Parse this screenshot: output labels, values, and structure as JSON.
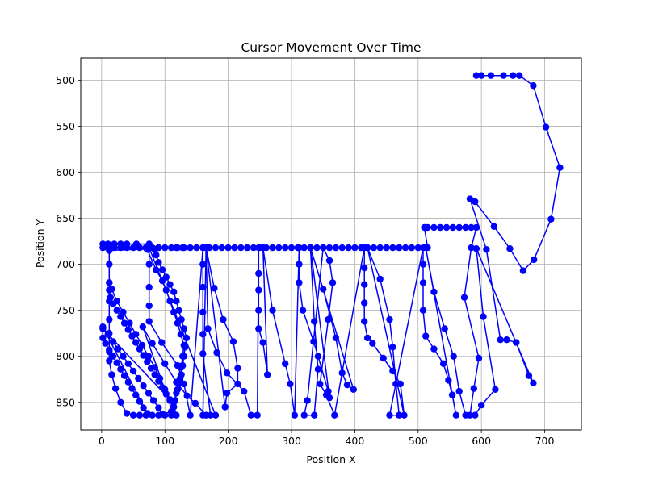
{
  "chart_data": {
    "type": "line",
    "title": "Cursor Movement Over Time",
    "xlabel": "Position X",
    "ylabel": "Position Y",
    "xlim": [
      -33,
      758
    ],
    "ylim": [
      880,
      476
    ],
    "y_inverted": true,
    "x_ticks": [
      0,
      100,
      200,
      300,
      400,
      500,
      600,
      700
    ],
    "y_ticks": [
      500,
      550,
      600,
      650,
      700,
      750,
      800,
      850
    ],
    "grid": true,
    "legend": "none",
    "series": [
      {
        "color": "#0000ff",
        "marker": "circle",
        "points": [
          [
            592,
            495
          ],
          [
            600,
            495
          ],
          [
            615,
            495
          ],
          [
            635,
            495
          ],
          [
            650,
            495
          ],
          [
            660,
            495
          ],
          [
            682,
            506
          ],
          [
            702,
            551
          ],
          [
            724,
            595
          ],
          [
            710,
            651
          ],
          [
            683,
            695
          ],
          [
            666,
            707
          ],
          [
            645,
            683
          ],
          [
            620,
            659
          ],
          [
            590,
            632
          ],
          [
            582,
            629
          ],
          [
            608,
            684
          ],
          [
            630,
            782
          ],
          [
            640,
            782
          ],
          [
            655,
            785
          ],
          [
            675,
            821
          ],
          [
            682,
            829
          ],
          [
            592,
            683
          ],
          [
            603,
            757
          ],
          [
            622,
            836
          ],
          [
            600,
            853
          ],
          [
            590,
            864
          ],
          [
            582,
            864
          ],
          [
            588,
            835
          ],
          [
            596,
            802
          ],
          [
            573,
            736
          ],
          [
            584,
            682
          ],
          [
            592,
            660
          ],
          [
            584,
            660
          ],
          [
            575,
            660
          ],
          [
            565,
            660
          ],
          [
            555,
            660
          ],
          [
            545,
            660
          ],
          [
            535,
            660
          ],
          [
            525,
            660
          ],
          [
            515,
            660
          ],
          [
            510,
            660
          ],
          [
            515,
            682
          ],
          [
            500,
            682
          ],
          [
            490,
            682
          ],
          [
            480,
            682
          ],
          [
            470,
            682
          ],
          [
            460,
            682
          ],
          [
            450,
            682
          ],
          [
            440,
            682
          ],
          [
            430,
            682
          ],
          [
            420,
            682
          ],
          [
            410,
            682
          ],
          [
            400,
            682
          ],
          [
            390,
            682
          ],
          [
            380,
            682
          ],
          [
            370,
            682
          ],
          [
            360,
            682
          ],
          [
            350,
            682
          ],
          [
            340,
            682
          ],
          [
            330,
            682
          ],
          [
            320,
            682
          ],
          [
            310,
            682
          ],
          [
            300,
            682
          ],
          [
            290,
            682
          ],
          [
            280,
            682
          ],
          [
            270,
            682
          ],
          [
            260,
            682
          ],
          [
            250,
            682
          ],
          [
            240,
            682
          ],
          [
            230,
            682
          ],
          [
            220,
            682
          ],
          [
            210,
            682
          ],
          [
            200,
            682
          ],
          [
            190,
            682
          ],
          [
            180,
            682
          ],
          [
            170,
            682
          ],
          [
            160,
            682
          ],
          [
            150,
            682
          ],
          [
            140,
            682
          ],
          [
            130,
            682
          ],
          [
            120,
            682
          ],
          [
            110,
            682
          ],
          [
            100,
            682
          ],
          [
            90,
            682
          ],
          [
            80,
            682
          ],
          [
            70,
            682
          ],
          [
            60,
            682
          ],
          [
            50,
            682
          ],
          [
            40,
            682
          ],
          [
            30,
            682
          ],
          [
            20,
            682
          ],
          [
            10,
            682
          ],
          [
            2,
            682
          ],
          [
            2,
            678
          ],
          [
            10,
            678
          ],
          [
            20,
            678
          ],
          [
            30,
            678
          ],
          [
            40,
            678
          ],
          [
            55,
            678
          ],
          [
            75,
            678
          ],
          [
            90,
            682
          ],
          [
            118,
            682
          ],
          [
            128,
            682
          ],
          [
            12,
            685
          ],
          [
            12,
            700
          ],
          [
            12,
            720
          ],
          [
            12,
            740
          ],
          [
            12,
            760
          ],
          [
            12,
            775
          ],
          [
            12,
            795
          ],
          [
            12,
            805
          ],
          [
            16,
            820
          ],
          [
            22,
            835
          ],
          [
            30,
            850
          ],
          [
            40,
            862
          ],
          [
            50,
            864
          ],
          [
            60,
            864
          ],
          [
            70,
            864
          ],
          [
            80,
            864
          ],
          [
            90,
            864
          ],
          [
            100,
            864
          ],
          [
            110,
            864
          ],
          [
            118,
            864
          ],
          [
            114,
            855
          ],
          [
            108,
            848
          ],
          [
            102,
            841
          ],
          [
            96,
            834
          ],
          [
            90,
            827
          ],
          [
            84,
            820
          ],
          [
            78,
            813
          ],
          [
            72,
            806
          ],
          [
            66,
            799
          ],
          [
            60,
            792
          ],
          [
            54,
            785
          ],
          [
            48,
            778
          ],
          [
            42,
            771
          ],
          [
            36,
            764
          ],
          [
            30,
            757
          ],
          [
            24,
            750
          ],
          [
            18,
            743
          ],
          [
            14,
            736
          ],
          [
            12,
            728
          ],
          [
            12,
            720
          ],
          [
            16,
            727
          ],
          [
            24,
            740
          ],
          [
            34,
            752
          ],
          [
            44,
            764
          ],
          [
            54,
            776
          ],
          [
            64,
            788
          ],
          [
            74,
            800
          ],
          [
            84,
            812
          ],
          [
            92,
            824
          ],
          [
            100,
            836
          ],
          [
            108,
            847
          ],
          [
            2,
            770
          ],
          [
            2,
            780
          ],
          [
            6,
            786
          ],
          [
            12,
            793
          ],
          [
            18,
            800
          ],
          [
            24,
            807
          ],
          [
            30,
            814
          ],
          [
            36,
            821
          ],
          [
            42,
            828
          ],
          [
            48,
            835
          ],
          [
            54,
            842
          ],
          [
            60,
            849
          ],
          [
            66,
            856
          ],
          [
            72,
            862
          ],
          [
            2,
            768
          ],
          [
            10,
            776
          ],
          [
            18,
            784
          ],
          [
            26,
            792
          ],
          [
            34,
            800
          ],
          [
            42,
            808
          ],
          [
            50,
            816
          ],
          [
            58,
            824
          ],
          [
            66,
            832
          ],
          [
            74,
            840
          ],
          [
            82,
            848
          ],
          [
            90,
            856
          ],
          [
            96,
            863
          ],
          [
            110,
            860
          ],
          [
            114,
            850
          ],
          [
            118,
            840
          ],
          [
            122,
            830
          ],
          [
            126,
            820
          ],
          [
            128,
            810
          ],
          [
            130,
            800
          ],
          [
            132,
            790
          ],
          [
            134,
            780
          ],
          [
            130,
            770
          ],
          [
            126,
            760
          ],
          [
            122,
            750
          ],
          [
            118,
            740
          ],
          [
            114,
            730
          ],
          [
            108,
            722
          ],
          [
            102,
            714
          ],
          [
            96,
            706
          ],
          [
            90,
            698
          ],
          [
            86,
            690
          ],
          [
            84,
            684
          ],
          [
            72,
            684
          ],
          [
            86,
            706
          ],
          [
            96,
            718
          ],
          [
            102,
            728
          ],
          [
            108,
            740
          ],
          [
            114,
            752
          ],
          [
            120,
            764
          ],
          [
            125,
            776
          ],
          [
            130,
            788
          ],
          [
            128,
            800
          ],
          [
            126,
            812
          ],
          [
            124,
            824
          ],
          [
            120,
            836
          ],
          [
            116,
            848
          ],
          [
            112,
            860
          ],
          [
            65,
            768
          ],
          [
            80,
            786
          ],
          [
            100,
            808
          ],
          [
            118,
            828
          ],
          [
            135,
            843
          ],
          [
            148,
            851
          ],
          [
            165,
            864
          ],
          [
            180,
            864
          ],
          [
            75,
            682
          ],
          [
            75,
            700
          ],
          [
            75,
            725
          ],
          [
            75,
            745
          ],
          [
            75,
            762
          ],
          [
            95,
            785
          ],
          [
            120,
            810
          ],
          [
            130,
            830
          ],
          [
            140,
            864
          ],
          [
            160,
            682
          ],
          [
            160,
            700
          ],
          [
            160,
            725
          ],
          [
            160,
            752
          ],
          [
            160,
            776
          ],
          [
            160,
            797
          ],
          [
            172,
            864
          ],
          [
            160,
            864
          ],
          [
            165,
            682
          ],
          [
            178,
            726
          ],
          [
            192,
            760
          ],
          [
            208,
            784
          ],
          [
            215,
            813
          ],
          [
            215,
            830
          ],
          [
            198,
            840
          ],
          [
            195,
            855
          ],
          [
            165,
            682
          ],
          [
            168,
            770
          ],
          [
            182,
            796
          ],
          [
            198,
            818
          ],
          [
            225,
            838
          ],
          [
            236,
            864
          ],
          [
            246,
            864
          ],
          [
            248,
            682
          ],
          [
            248,
            710
          ],
          [
            248,
            728
          ],
          [
            248,
            750
          ],
          [
            248,
            770
          ],
          [
            255,
            785
          ],
          [
            262,
            820
          ],
          [
            255,
            682
          ],
          [
            270,
            750
          ],
          [
            290,
            808
          ],
          [
            298,
            830
          ],
          [
            305,
            864
          ],
          [
            312,
            682
          ],
          [
            312,
            700
          ],
          [
            312,
            720
          ],
          [
            318,
            750
          ],
          [
            335,
            784
          ],
          [
            342,
            800
          ],
          [
            358,
            838
          ],
          [
            360,
            845
          ],
          [
            330,
            682
          ],
          [
            350,
            727
          ],
          [
            370,
            780
          ],
          [
            380,
            818
          ],
          [
            388,
            831
          ],
          [
            398,
            836
          ],
          [
            330,
            682
          ],
          [
            336,
            762
          ],
          [
            342,
            814
          ],
          [
            336,
            864
          ],
          [
            320,
            864
          ],
          [
            325,
            848
          ],
          [
            350,
            682
          ],
          [
            360,
            696
          ],
          [
            365,
            720
          ],
          [
            358,
            760
          ],
          [
            345,
            830
          ],
          [
            355,
            842
          ],
          [
            368,
            864
          ],
          [
            415,
            682
          ],
          [
            415,
            704
          ],
          [
            415,
            722
          ],
          [
            415,
            742
          ],
          [
            415,
            762
          ],
          [
            420,
            780
          ],
          [
            428,
            786
          ],
          [
            445,
            802
          ],
          [
            460,
            816
          ],
          [
            472,
            830
          ],
          [
            478,
            864
          ],
          [
            420,
            682
          ],
          [
            440,
            716
          ],
          [
            455,
            760
          ],
          [
            460,
            790
          ],
          [
            465,
            830
          ],
          [
            470,
            864
          ],
          [
            455,
            864
          ],
          [
            508,
            682
          ],
          [
            508,
            700
          ],
          [
            508,
            720
          ],
          [
            508,
            750
          ],
          [
            512,
            778
          ],
          [
            525,
            792
          ],
          [
            540,
            808
          ],
          [
            548,
            826
          ],
          [
            554,
            842
          ],
          [
            560,
            864
          ],
          [
            512,
            682
          ],
          [
            525,
            730
          ],
          [
            542,
            770
          ],
          [
            556,
            800
          ],
          [
            565,
            838
          ],
          [
            575,
            864
          ]
        ]
      }
    ]
  }
}
